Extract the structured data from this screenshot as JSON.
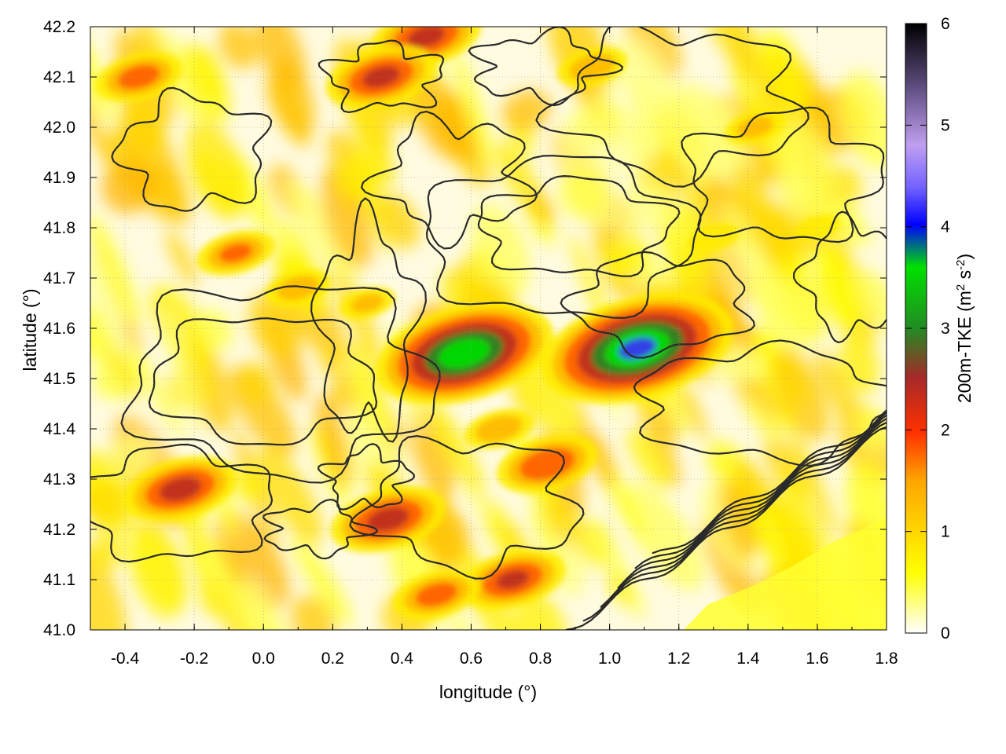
{
  "chart_data": {
    "type": "heatmap",
    "title": "",
    "xlabel": "longitude (°)",
    "ylabel": "latitude (°)",
    "xlim": [
      -0.5,
      1.8
    ],
    "ylim": [
      41.0,
      42.2
    ],
    "xticks": [
      "-0.4",
      "-0.2",
      "0.0",
      "0.2",
      "0.4",
      "0.6",
      "0.8",
      "1.0",
      "1.2",
      "1.4",
      "1.6",
      "1.8"
    ],
    "yticks": [
      "41.0",
      "41.1",
      "41.2",
      "41.3",
      "41.4",
      "41.5",
      "41.6",
      "41.7",
      "41.8",
      "41.9",
      "42.0",
      "42.1",
      "42.2"
    ],
    "grid": true,
    "colorbar": {
      "label_main": "200m-TKE (m",
      "label_sup1": "2",
      "label_mid": " s",
      "label_sup2": "-2",
      "label_end": ")",
      "range": [
        0,
        6
      ],
      "ticks": [
        "0",
        "1",
        "2",
        "3",
        "4",
        "5",
        "6"
      ],
      "palette": [
        [
          0.0,
          "#ffffff"
        ],
        [
          0.05,
          "#ffff80"
        ],
        [
          0.1,
          "#ffff00"
        ],
        [
          0.25,
          "#ffa500"
        ],
        [
          0.33,
          "#ff3000"
        ],
        [
          0.42,
          "#a52a2a"
        ],
        [
          0.5,
          "#228b22"
        ],
        [
          0.6,
          "#00e000"
        ],
        [
          0.67,
          "#0000ff"
        ],
        [
          0.73,
          "#7060ff"
        ],
        [
          0.8,
          "#c09ff0"
        ],
        [
          0.9,
          "#5a4a7a"
        ],
        [
          1.0,
          "#000000"
        ]
      ]
    },
    "hotspots": [
      {
        "lon": 0.58,
        "lat": 41.55,
        "value": 4.0
      },
      {
        "lon": 1.08,
        "lat": 41.56,
        "value": 4.3
      },
      {
        "lon": -0.24,
        "lat": 41.28,
        "value": 2.6
      },
      {
        "lon": 0.36,
        "lat": 41.22,
        "value": 2.6
      },
      {
        "lon": -0.36,
        "lat": 42.1,
        "value": 2.0
      },
      {
        "lon": 0.47,
        "lat": 42.18,
        "value": 2.5
      },
      {
        "lon": 0.34,
        "lat": 42.1,
        "value": 2.5
      },
      {
        "lon": 0.82,
        "lat": 41.33,
        "value": 2.3
      },
      {
        "lon": 0.72,
        "lat": 41.1,
        "value": 2.4
      },
      {
        "lon": 0.5,
        "lat": 41.07,
        "value": 2.0
      },
      {
        "lon": -0.08,
        "lat": 41.75,
        "value": 1.8
      },
      {
        "lon": 0.1,
        "lat": 41.68,
        "value": 1.5
      },
      {
        "lon": 0.95,
        "lat": 42.12,
        "value": 1.6
      },
      {
        "lon": 1.42,
        "lat": 42.0,
        "value": 1.4
      },
      {
        "lon": 0.3,
        "lat": 41.65,
        "value": 1.3
      },
      {
        "lon": 0.68,
        "lat": 41.4,
        "value": 1.6
      },
      {
        "lon": 1.3,
        "lat": 41.78,
        "value": 1.2
      },
      {
        "lon": 1.6,
        "lat": 41.8,
        "value": 1.1
      }
    ],
    "contour_note": "black terrain contour lines overlaid"
  }
}
